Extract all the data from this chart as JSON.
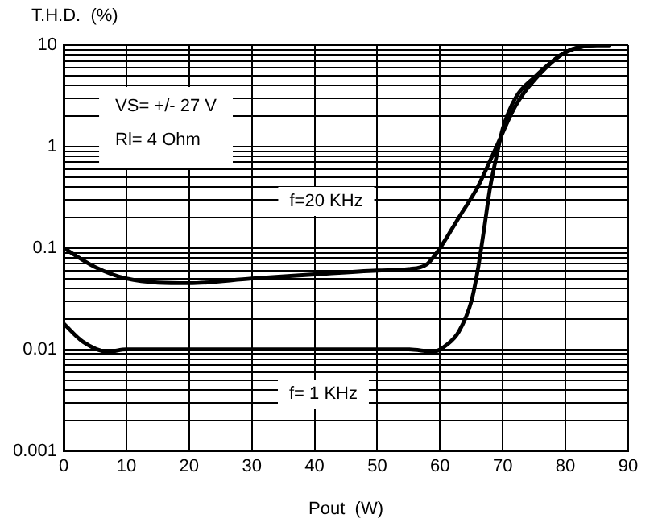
{
  "chart_data": {
    "type": "line",
    "xlabel": "Pout  (W)",
    "ylabel": "T.H.D.  (%)",
    "log": "y",
    "grid": true,
    "legend": false,
    "marker": "none",
    "line_style": "solid",
    "xlim": [
      0,
      90
    ],
    "xticks": [
      0,
      10,
      20,
      30,
      40,
      50,
      60,
      70,
      80,
      90
    ],
    "ylim": [
      0.001,
      10
    ],
    "yticks": [
      0.001,
      {
        "value": 0.002,
        "label": null
      },
      {
        "value": 0.003,
        "label": null
      },
      {
        "value": 0.004,
        "label": null
      },
      {
        "value": 0.005,
        "label": null
      },
      {
        "value": 0.006,
        "label": null
      },
      {
        "value": 0.007,
        "label": null
      },
      {
        "value": 0.008,
        "label": null
      },
      {
        "value": 0.009,
        "label": null
      },
      0.01,
      {
        "value": 0.02,
        "label": null
      },
      {
        "value": 0.03,
        "label": null
      },
      {
        "value": 0.04,
        "label": null
      },
      {
        "value": 0.05,
        "label": null
      },
      {
        "value": 0.06,
        "label": null
      },
      {
        "value": 0.07,
        "label": null
      },
      {
        "value": 0.08,
        "label": null
      },
      {
        "value": 0.09,
        "label": null
      },
      0.1,
      {
        "value": 0.2,
        "label": null
      },
      {
        "value": 0.3,
        "label": null
      },
      {
        "value": 0.4,
        "label": null
      },
      {
        "value": 0.5,
        "label": null
      },
      {
        "value": 0.6,
        "label": null
      },
      {
        "value": 0.7,
        "label": null
      },
      {
        "value": 0.8,
        "label": null
      },
      {
        "value": 0.9,
        "label": null
      },
      1,
      {
        "value": 2,
        "label": null
      },
      {
        "value": 3,
        "label": null
      },
      {
        "value": 4,
        "label": null
      },
      {
        "value": 5,
        "label": null
      },
      {
        "value": 6,
        "label": null
      },
      {
        "value": 7,
        "label": null
      },
      {
        "value": 8,
        "label": null
      },
      {
        "value": 9,
        "label": null
      },
      10
    ],
    "series": [
      {
        "color": "#000000",
        "x": [
          0,
          5,
          10,
          20,
          30,
          40,
          50,
          55,
          58,
          60,
          63,
          66,
          69,
          72,
          75,
          80,
          85,
          87
        ],
        "values": [
          0.1,
          0.065,
          0.05,
          0.045,
          0.05,
          0.055,
          0.06,
          0.062,
          0.07,
          0.1,
          0.2,
          0.4,
          1,
          2.5,
          4.5,
          8.5,
          10,
          10
        ]
      },
      {
        "color": "#000000",
        "x": [
          0,
          3,
          7,
          10,
          55,
          59,
          61,
          63,
          65,
          66,
          67,
          68,
          69,
          70,
          72,
          75,
          80,
          85,
          87
        ],
        "values": [
          0.018,
          0.012,
          0.0095,
          0.01,
          0.01,
          0.0095,
          0.011,
          0.015,
          0.03,
          0.06,
          0.15,
          0.4,
          0.8,
          1.5,
          3,
          4.8,
          8.5,
          10,
          10
        ]
      }
    ],
    "annotations": [
      "VS= +/- 27 V",
      "Rl= 4 Ohm",
      "f=20 KHz",
      "f= 1 KHz"
    ]
  }
}
